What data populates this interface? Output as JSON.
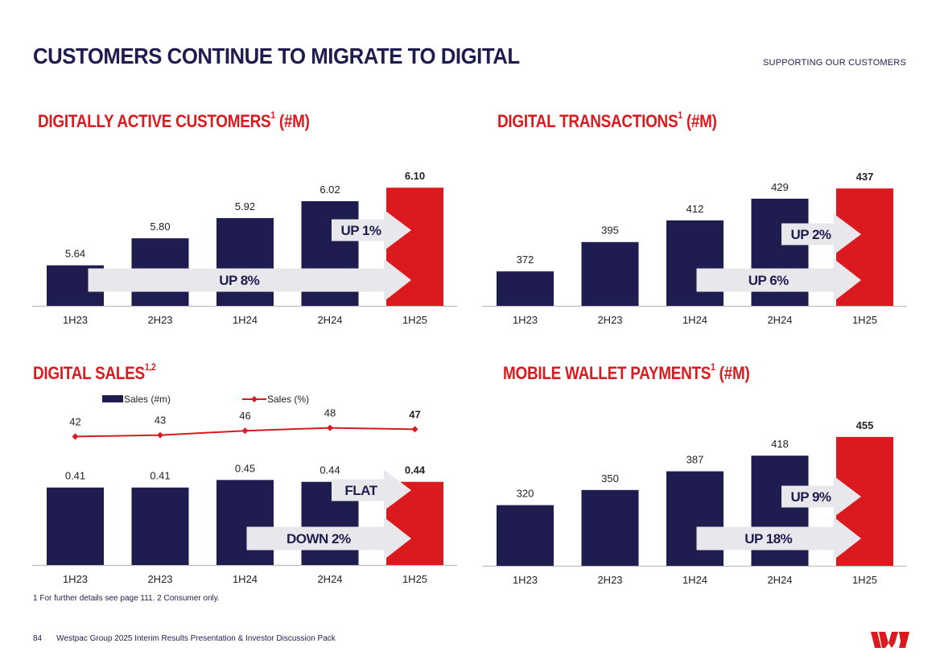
{
  "page": {
    "title": "CUSTOMERS CONTINUE TO MIGRATE TO DIGITAL",
    "section": "SUPPORTING OUR CUSTOMERS",
    "footnote": "1 For further details see page 111.  2 Consumer only.",
    "page_number": "84",
    "footer_text": "Westpac Group 2025 Interim Results Presentation & Investor Discussion Pack",
    "logo_alt": "Westpac logo"
  },
  "colors": {
    "navy": "#1f1c4f",
    "red": "#da1a1e",
    "arrow": "#e8e8ec",
    "axis": "#bdbdbd"
  },
  "charts": {
    "active": {
      "title": "DIGITALLY ACTIVE CUSTOMERS",
      "title_sup": "1",
      "title_suffix": " (#M)"
    },
    "transactions": {
      "title": "DIGITAL TRANSACTIONS",
      "title_sup": "1",
      "title_suffix": " (#M)"
    },
    "sales": {
      "title": "DIGITAL SALES",
      "title_sup": "1,2",
      "title_suffix": ""
    },
    "wallet": {
      "title": "MOBILE WALLET PAYMENTS",
      "title_sup": "1",
      "title_suffix": " (#M)"
    }
  },
  "chart_data": [
    {
      "id": "active",
      "type": "bar",
      "title": "DIGITALLY ACTIVE CUSTOMERS1 (#M)",
      "categories": [
        "1H23",
        "2H23",
        "1H24",
        "2H24",
        "1H25"
      ],
      "values": [
        5.64,
        5.8,
        5.92,
        6.02,
        6.1
      ],
      "labels": [
        "5.64",
        "5.80",
        "5.92",
        "6.02",
        "6.10"
      ],
      "highlight_last": true,
      "ylim": [
        5.4,
        6.12
      ],
      "annotations": [
        {
          "text": "UP 1%",
          "from": "2H24",
          "to": "1H25",
          "level": "upper"
        },
        {
          "text": "UP 8%",
          "from": "1H23",
          "to": "1H25",
          "level": "lower"
        }
      ]
    },
    {
      "id": "transactions",
      "type": "bar",
      "title": "DIGITAL TRANSACTIONS1 (#M)",
      "categories": [
        "1H23",
        "2H23",
        "1H24",
        "2H24",
        "1H25"
      ],
      "values": [
        372,
        395,
        412,
        429,
        437
      ],
      "labels": [
        "372",
        "395",
        "412",
        "429",
        "437"
      ],
      "highlight_last": true,
      "ylim": [
        345,
        439
      ],
      "annotations": [
        {
          "text": "UP 2%",
          "from": "2H24",
          "to": "1H25",
          "level": "upper"
        },
        {
          "text": "UP 6%",
          "from": "1H24",
          "to": "1H25",
          "level": "lower"
        }
      ]
    },
    {
      "id": "sales",
      "type": "bar+line",
      "title": "DIGITAL SALES1,2",
      "categories": [
        "1H23",
        "2H23",
        "1H24",
        "2H24",
        "1H25"
      ],
      "series": [
        {
          "name": "Sales (#m)",
          "type": "bar",
          "values": [
            0.41,
            0.41,
            0.45,
            0.44,
            0.44
          ],
          "labels": [
            "0.41",
            "0.41",
            "0.45",
            "0.44",
            "0.44"
          ]
        },
        {
          "name": "Sales (%)",
          "type": "line",
          "values": [
            42,
            43,
            46,
            48,
            47
          ],
          "labels": [
            "42",
            "43",
            "46",
            "48",
            "47"
          ]
        }
      ],
      "legend": [
        "Sales (#m)",
        "Sales (%)"
      ],
      "highlight_last": true,
      "ylim": [
        0,
        0.46
      ],
      "annotations": [
        {
          "text": "FLAT",
          "from": "2H24",
          "to": "1H25",
          "level": "upper"
        },
        {
          "text": "DOWN 2%",
          "from": "1H24",
          "to": "1H25",
          "level": "lower"
        }
      ]
    },
    {
      "id": "wallet",
      "type": "bar",
      "title": "MOBILE WALLET PAYMENTS1 (#M)",
      "categories": [
        "1H23",
        "2H23",
        "1H24",
        "2H24",
        "1H25"
      ],
      "values": [
        320,
        350,
        387,
        418,
        455
      ],
      "labels": [
        "320",
        "350",
        "387",
        "418",
        "455"
      ],
      "highlight_last": true,
      "ylim": [
        200,
        458
      ],
      "annotations": [
        {
          "text": "UP 9%",
          "from": "2H24",
          "to": "1H25",
          "level": "upper"
        },
        {
          "text": "UP 18%",
          "from": "1H24",
          "to": "1H25",
          "level": "lower"
        }
      ]
    }
  ]
}
